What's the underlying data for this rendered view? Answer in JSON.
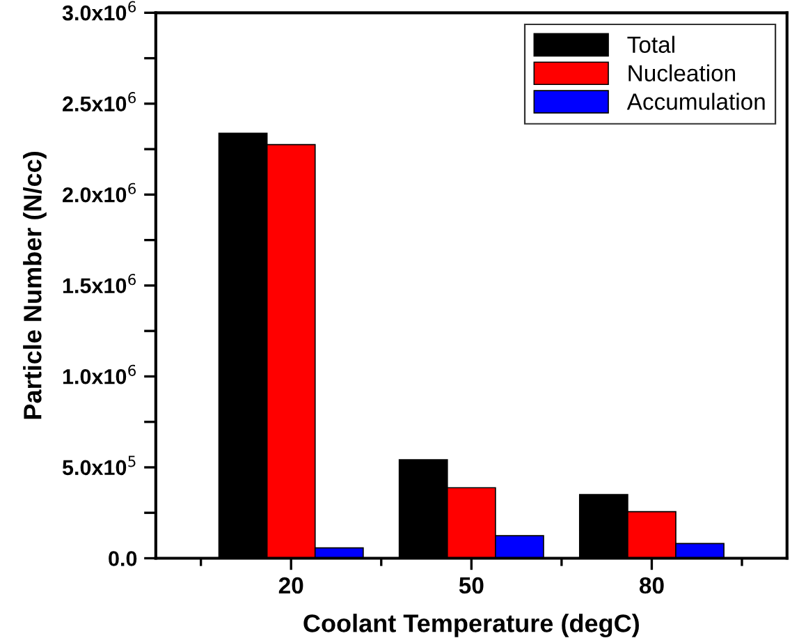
{
  "chart_data": {
    "type": "bar",
    "xlabel": "Coolant Temperature (degC)",
    "ylabel": "Particle Number (N/cc)",
    "categories": [
      "20",
      "50",
      "80"
    ],
    "series": [
      {
        "name": "Total",
        "color": "#000000",
        "values": [
          2337000,
          542000,
          350000
        ]
      },
      {
        "name": "Nucleation",
        "color": "#ff0000",
        "values": [
          2275000,
          388000,
          256000
        ]
      },
      {
        "name": "Accumulation",
        "color": "#0000ff",
        "values": [
          57000,
          124000,
          81000
        ]
      }
    ],
    "ylim": [
      0,
      3000000
    ],
    "yticks": [
      {
        "value": 0,
        "label": "0.0"
      },
      {
        "value": 250000,
        "label": null
      },
      {
        "value": 500000,
        "label": "5.0x10$^{5}$"
      },
      {
        "value": 750000,
        "label": null
      },
      {
        "value": 1000000,
        "label": "1.0x10$^{6}$"
      },
      {
        "value": 1250000,
        "label": null
      },
      {
        "value": 1500000,
        "label": "1.5x10$^{6}$"
      },
      {
        "value": 1750000,
        "label": null
      },
      {
        "value": 2000000,
        "label": "2.0x10$^{6}$"
      },
      {
        "value": 2250000,
        "label": null
      },
      {
        "value": 2500000,
        "label": "2.5x10$^{6}$"
      },
      {
        "value": 2750000,
        "label": null
      },
      {
        "value": 3000000,
        "label": "3.0x10$^{6}$"
      }
    ],
    "grid": false,
    "legend": "top right"
  }
}
